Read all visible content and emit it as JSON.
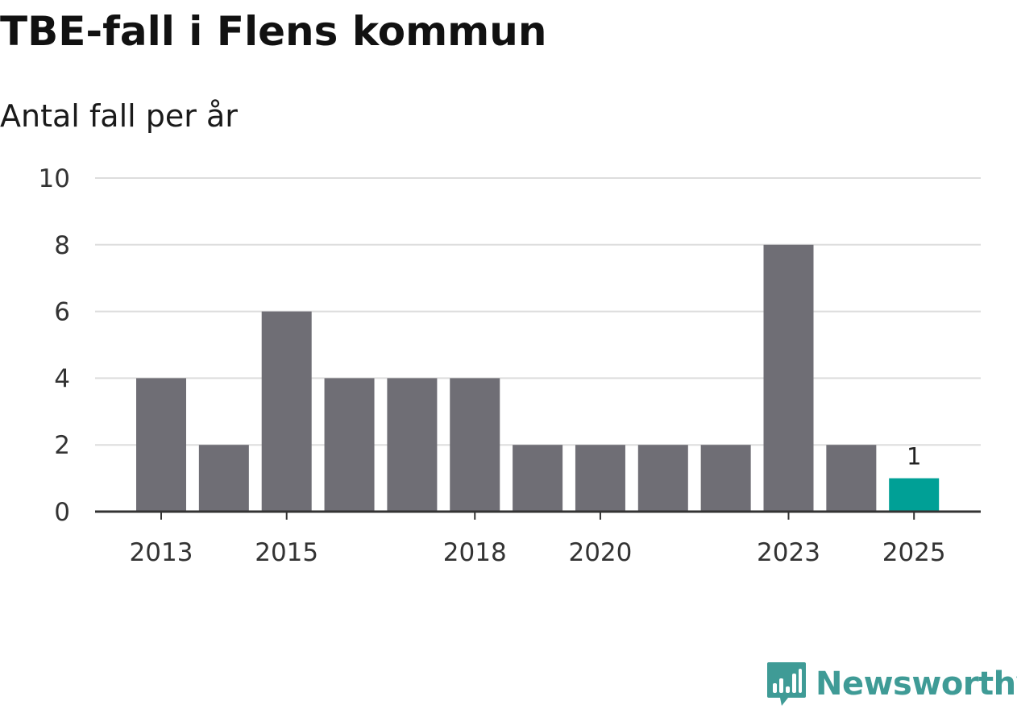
{
  "chart_data": {
    "type": "bar",
    "title": "TBE-fall i Flens kommun",
    "subtitle": "Antal fall per år",
    "categories": [
      "2013",
      "2014",
      "2015",
      "2016",
      "2017",
      "2018",
      "2019",
      "2020",
      "2021",
      "2022",
      "2023",
      "2024",
      "2025"
    ],
    "values": [
      4,
      2,
      6,
      4,
      4,
      4,
      2,
      2,
      2,
      2,
      8,
      2,
      1
    ],
    "x_tick_labels": [
      "2013",
      "2015",
      "2018",
      "2020",
      "2023",
      "2025"
    ],
    "y_ticks": [
      0,
      2,
      4,
      6,
      8,
      10
    ],
    "ylim": [
      0,
      10
    ],
    "xlabel": "",
    "ylabel": "",
    "grid": true,
    "bar_color": "#6f6e75",
    "highlight_color": "#00a096",
    "highlight_category": "2025",
    "data_labels": [
      {
        "category": "2025",
        "text": "1"
      }
    ]
  },
  "brand": {
    "name": "Newsworthy",
    "color": "#3f9b96",
    "icon": "newsworthy-chart-bubble-icon"
  }
}
